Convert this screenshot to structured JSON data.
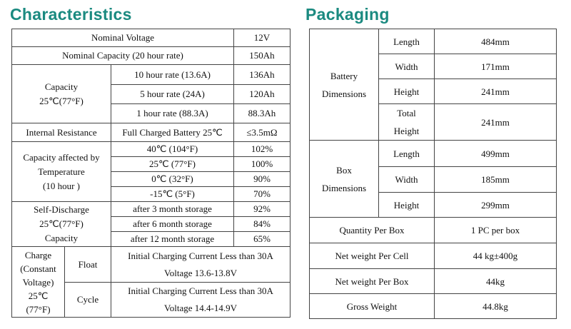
{
  "characteristics": {
    "title": "Characteristics",
    "rows": [
      [
        "Nominal Voltage",
        "12V"
      ],
      [
        "Nominal Capacity (20 hour rate)",
        "150Ah"
      ],
      [
        "Capacity\n25℃(77°F)",
        "10 hour rate (13.6A)",
        "136Ah"
      ],
      [
        "5 hour rate (24A)",
        "120Ah"
      ],
      [
        "1 hour rate (88.3A)",
        "88.3Ah"
      ],
      [
        "Internal Resistance",
        "Full Charged Battery 25℃",
        "≤3.5mΩ"
      ],
      [
        "Capacity affected by\nTemperature\n(10 hour )",
        "40℃ (104°F)",
        "102%"
      ],
      [
        "25℃ (77°F)",
        "100%"
      ],
      [
        "0℃ (32°F)",
        "90%"
      ],
      [
        "-15℃ (5°F)",
        "70%"
      ],
      [
        "Self-Discharge\n25℃(77°F)\nCapacity",
        "after 3 month storage",
        "92%"
      ],
      [
        "after 6 month storage",
        "84%"
      ],
      [
        "after 12 month storage",
        "65%"
      ],
      [
        "Charge\n(Constant\nVoltage)\n25℃\n(77°F)",
        "Float",
        "Initial Charging Current Less than 30A\nVoltage 13.6-13.8V"
      ],
      [
        "Cycle",
        "Initial Charging Current Less than 30A\nVoltage 14.4-14.9V"
      ]
    ]
  },
  "packaging": {
    "title": "Packaging",
    "rows": [
      [
        "Battery\nDimensions",
        "Length",
        "484mm"
      ],
      [
        "Width",
        "171mm"
      ],
      [
        "Height",
        "241mm"
      ],
      [
        "Total\nHeight",
        "241mm"
      ],
      [
        "Box\nDimensions",
        "Length",
        "499mm"
      ],
      [
        "Width",
        "185mm"
      ],
      [
        "Height",
        "299mm"
      ],
      [
        "Quantity Per Box",
        "1 PC per box"
      ],
      [
        "Net weight Per Cell",
        "44 kg±400g"
      ],
      [
        "Net weight Per Box",
        "44kg"
      ],
      [
        "Gross Weight",
        "44.8kg"
      ]
    ]
  }
}
